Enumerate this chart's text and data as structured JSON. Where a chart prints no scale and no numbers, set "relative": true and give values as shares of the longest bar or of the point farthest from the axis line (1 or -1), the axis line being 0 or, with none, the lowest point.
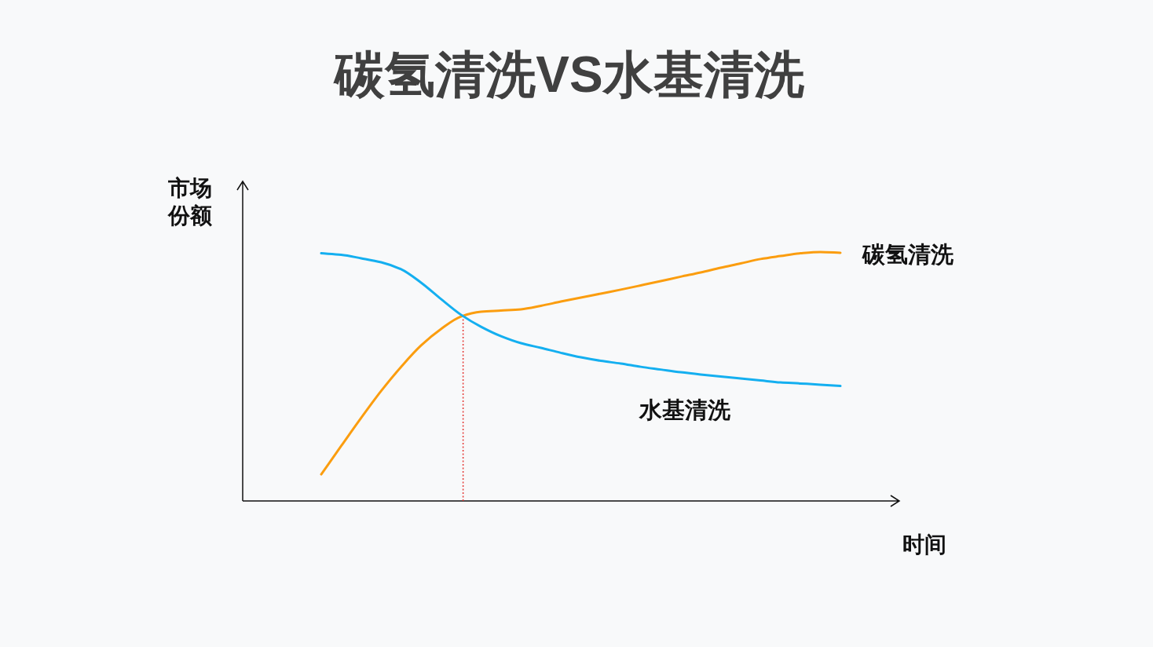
{
  "chart_data": {
    "type": "line",
    "title": "碳氢清洗VS水基清洗",
    "xlabel": "时间",
    "ylabel": "市场份额",
    "relative": true,
    "line_style": "solid",
    "categories": [
      null,
      null,
      null,
      null,
      null,
      null,
      null,
      null,
      null,
      null,
      null,
      null,
      null,
      null,
      null,
      null,
      null,
      null,
      null,
      null,
      null,
      null,
      null,
      null,
      null,
      null,
      null
    ],
    "series": [
      {
        "name": "碳氢清洗",
        "color": "#fb9d0f",
        "values": [
          0.107,
          0.221,
          0.334,
          0.442,
          0.539,
          0.625,
          0.691,
          0.741,
          0.76,
          0.765,
          0.77,
          0.784,
          0.801,
          0.817,
          0.833,
          0.849,
          0.866,
          0.883,
          0.901,
          0.918,
          0.937,
          0.954,
          0.972,
          0.984,
          0.995,
          1.0,
          0.997
        ]
      },
      {
        "name": "水基清洗",
        "color": "#14aff0",
        "values": [
          0.995,
          0.989,
          0.975,
          0.959,
          0.931,
          0.877,
          0.811,
          0.748,
          0.7,
          0.662,
          0.634,
          0.615,
          0.595,
          0.577,
          0.563,
          0.552,
          0.539,
          0.528,
          0.517,
          0.508,
          0.5,
          0.492,
          0.484,
          0.476,
          0.472,
          0.467,
          0.462
        ]
      }
    ]
  }
}
